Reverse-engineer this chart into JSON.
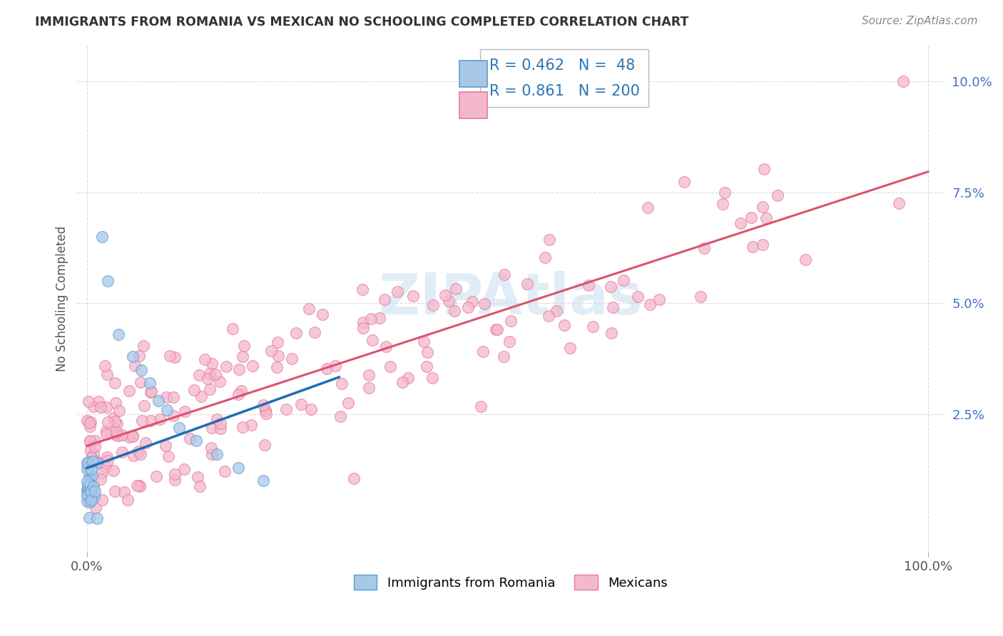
{
  "title": "IMMIGRANTS FROM ROMANIA VS MEXICAN NO SCHOOLING COMPLETED CORRELATION CHART",
  "source_text": "Source: ZipAtlas.com",
  "ylabel": "No Schooling Completed",
  "romania_color": "#a8c8e8",
  "romania_edge_color": "#5b9bd5",
  "mexican_color": "#f4b8cc",
  "mexican_edge_color": "#e878a0",
  "romania_line_color": "#1f6db5",
  "mexican_line_color": "#d9546e",
  "trend_dash_color": "#9bb8d4",
  "romania_R": 0.462,
  "romania_N": 48,
  "mexican_R": 0.861,
  "mexican_N": 200,
  "stat_color": "#2e75b6",
  "watermark_color": "#c8ddf0",
  "background_color": "#ffffff",
  "grid_color": "#cccccc",
  "title_color": "#333333",
  "ytick_color": "#4472c4",
  "source_color": "#888888",
  "ylabel_color": "#555555"
}
